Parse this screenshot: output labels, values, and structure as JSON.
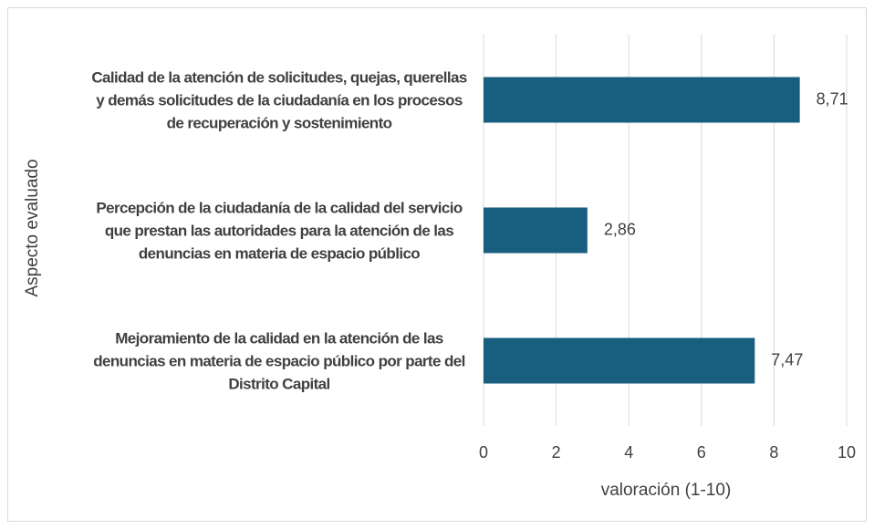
{
  "chart_data": {
    "type": "bar",
    "orientation": "horizontal",
    "categories": [
      "Calidad de la atención de solicitudes, quejas, querellas y demás solicitudes de la ciudadanía en los procesos de recuperación y sostenimiento",
      "Percepción de la ciudadanía de la calidad del servicio que prestan las autoridades para la atención de las denuncias en materia de espacio público",
      "Mejoramiento de la calidad en la atención de las denuncias en materia de espacio público por parte del Distrito Capital"
    ],
    "values": [
      8.71,
      2.86,
      7.47
    ],
    "value_labels": [
      "8,71",
      "2,86",
      "7,47"
    ],
    "color": "#175e7f",
    "xlim": [
      0,
      10
    ],
    "xticks": [
      0,
      2,
      4,
      6,
      8,
      10
    ],
    "x_label": "valoración (1-10)",
    "y_label": "Aspecto evaluado",
    "grid": true
  }
}
